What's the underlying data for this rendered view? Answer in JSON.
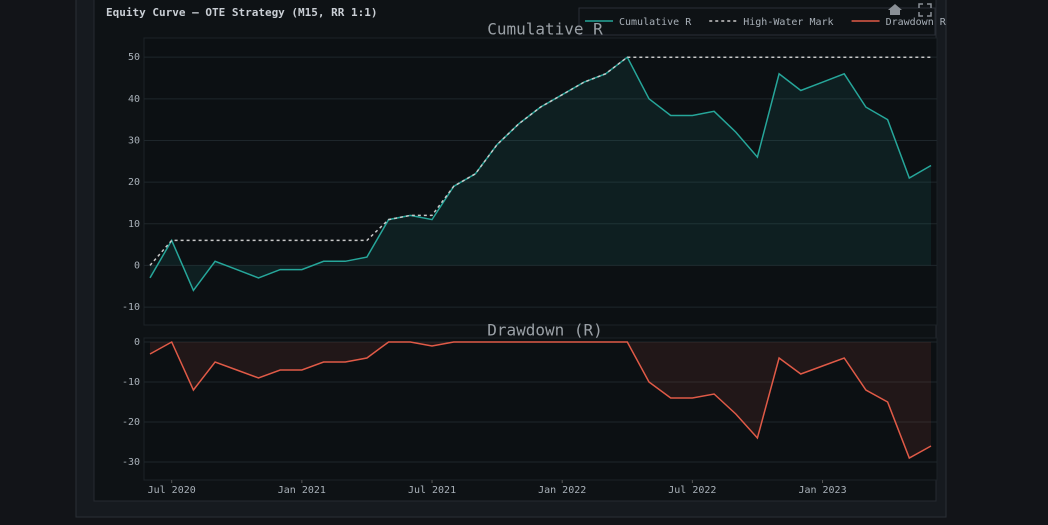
{
  "window_title": "Equity Curve — OTE Strategy (M15, RR 1:1)",
  "chart_data": [
    {
      "type": "line",
      "title": "Cumulative R",
      "x": [
        "2020-06",
        "2020-07",
        "2020-08",
        "2020-09",
        "2020-10",
        "2020-11",
        "2020-12",
        "2021-01",
        "2021-02",
        "2021-03",
        "2021-04",
        "2021-05",
        "2021-06",
        "2021-07",
        "2021-08",
        "2021-09",
        "2021-10",
        "2021-11",
        "2021-12",
        "2022-01",
        "2022-02",
        "2022-03",
        "2022-04",
        "2022-05",
        "2022-06",
        "2022-07",
        "2022-08",
        "2022-09",
        "2022-10",
        "2022-11",
        "2022-12",
        "2023-01",
        "2023-02",
        "2023-03",
        "2023-04",
        "2023-05",
        "2023-06"
      ],
      "series": [
        {
          "name": "Cumulative R",
          "color": "#26a69a",
          "fill": true,
          "values": [
            -3,
            6,
            -6,
            1,
            -1,
            -3,
            -1,
            -1,
            1,
            1,
            2,
            11,
            12,
            11,
            19,
            22,
            29,
            34,
            38,
            41,
            44,
            46,
            50,
            40,
            36,
            36,
            37,
            32,
            26,
            46,
            42,
            44,
            46,
            38,
            35,
            21,
            24
          ]
        },
        {
          "name": "High-Water Mark",
          "color": "#c8c8c8",
          "dashed": true,
          "values": [
            0,
            6,
            6,
            6,
            6,
            6,
            6,
            6,
            6,
            6,
            6,
            11,
            12,
            12,
            19,
            22,
            29,
            34,
            38,
            41,
            44,
            46,
            50,
            50,
            50,
            50,
            50,
            50,
            50,
            50,
            50,
            50,
            50,
            50,
            50,
            50,
            50
          ]
        }
      ],
      "ylim": [
        -14.3,
        54.6
      ],
      "yticks": [
        -10,
        0,
        10,
        20,
        30,
        40,
        50
      ],
      "grid": true
    },
    {
      "type": "area",
      "title": "Drawdown (R)",
      "x": [
        "2020-06",
        "2020-07",
        "2020-08",
        "2020-09",
        "2020-10",
        "2020-11",
        "2020-12",
        "2021-01",
        "2021-02",
        "2021-03",
        "2021-04",
        "2021-05",
        "2021-06",
        "2021-07",
        "2021-08",
        "2021-09",
        "2021-10",
        "2021-11",
        "2021-12",
        "2022-01",
        "2022-02",
        "2022-03",
        "2022-04",
        "2022-05",
        "2022-06",
        "2022-07",
        "2022-08",
        "2022-09",
        "2022-10",
        "2022-11",
        "2022-12",
        "2023-01",
        "2023-02",
        "2023-03",
        "2023-04",
        "2023-05",
        "2023-06"
      ],
      "series": [
        {
          "name": "Drawdown R",
          "color": "#e05a47",
          "fill": true,
          "values": [
            -3,
            0,
            -12,
            -5,
            -7,
            -9,
            -7,
            -7,
            -5,
            -5,
            -4,
            0,
            0,
            -1,
            0,
            0,
            0,
            0,
            0,
            0,
            0,
            0,
            0,
            -10,
            -14,
            -14,
            -13,
            -18,
            -24,
            -4,
            -8,
            -6,
            -4,
            -12,
            -15,
            -29,
            -26
          ]
        }
      ],
      "ylim": [
        -34.5,
        1
      ],
      "yticks": [
        -30,
        -20,
        -10,
        0
      ],
      "grid": true,
      "xticks": [
        {
          "value": "2020-07",
          "label": "Jul 2020"
        },
        {
          "value": "2021-01",
          "label": "Jan 2021"
        },
        {
          "value": "2021-07",
          "label": "Jul 2021"
        },
        {
          "value": "2022-01",
          "label": "Jan 2022"
        },
        {
          "value": "2022-07",
          "label": "Jul 2022"
        },
        {
          "value": "2023-01",
          "label": "Jan 2023"
        }
      ]
    }
  ]
}
